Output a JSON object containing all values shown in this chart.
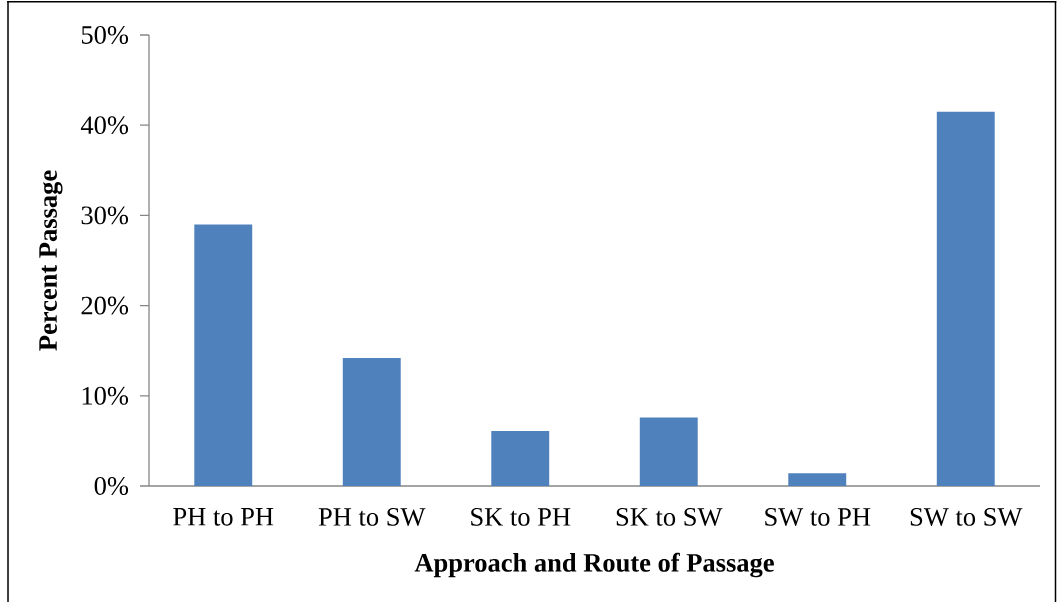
{
  "chart_data": {
    "type": "bar",
    "categories": [
      "PH to PH",
      "PH to SW",
      "SK to PH",
      "SK to SW",
      "SW to PH",
      "SW to SW"
    ],
    "values": [
      29,
      14.2,
      6.1,
      7.6,
      1.4,
      41.5
    ],
    "color": "#4f81bd",
    "xlabel": "Approach and Route of Passage",
    "ylabel": "Percent Passage",
    "ylim": [
      0,
      50
    ],
    "yticks": [
      {
        "value": 0,
        "label": "0%"
      },
      {
        "value": 10,
        "label": "10%"
      },
      {
        "value": 20,
        "label": "20%"
      },
      {
        "value": 30,
        "label": "30%"
      },
      {
        "value": 40,
        "label": "40%"
      },
      {
        "value": 50,
        "label": "50%"
      }
    ]
  }
}
